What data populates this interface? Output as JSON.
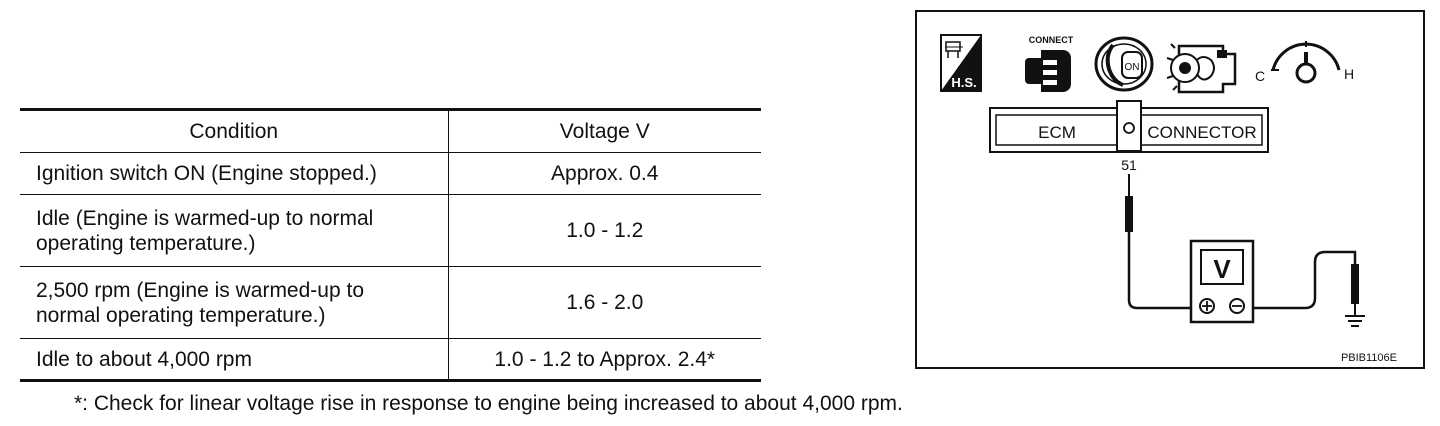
{
  "table": {
    "headers": [
      "Condition",
      "Voltage V"
    ],
    "rows": [
      {
        "condition": [
          "Ignition switch ON (Engine stopped.)"
        ],
        "voltage": "Approx. 0.4"
      },
      {
        "condition": [
          "Idle (Engine is warmed-up to normal",
          "operating temperature.)"
        ],
        "voltage": "1.0 - 1.2"
      },
      {
        "condition": [
          "2,500 rpm (Engine is warmed-up to",
          "normal operating temperature.)"
        ],
        "voltage": "1.6 - 2.0"
      },
      {
        "condition": [
          "Idle to about 4,000 rpm"
        ],
        "voltage": "1.0 - 1.2 to Approx. 2.4*"
      }
    ]
  },
  "footnote": "*: Check for linear voltage rise in response to engine being increased to about 4,000 rpm.",
  "diagram": {
    "icons": {
      "hs_label": "H.S.",
      "connect_label": "CONNECT",
      "ignition_label": "ON",
      "temp_cold": "C",
      "temp_hot": "H"
    },
    "connector": {
      "left_label": "ECM",
      "right_label": "CONNECTOR"
    },
    "terminal": "51",
    "meter_label": "V",
    "figure_code": "PBIB1106E",
    "icon_names": [
      "hood-service-icon",
      "connector-icon",
      "ignition-key-icon",
      "engine-icon",
      "temperature-gauge-icon",
      "ground-icon"
    ]
  }
}
